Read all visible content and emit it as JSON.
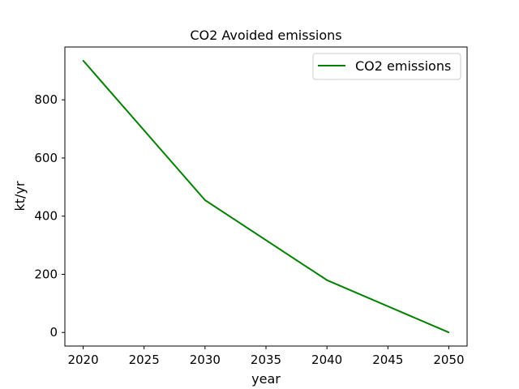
{
  "chart_data": {
    "type": "line",
    "title": "CO2 Avoided emissions",
    "xlabel": "year",
    "ylabel": "kt/yr",
    "x": [
      2020,
      2030,
      2040,
      2050
    ],
    "series": [
      {
        "name": "CO2 emissions",
        "values": [
          935,
          455,
          180,
          0
        ],
        "color": "#008000"
      }
    ],
    "xlim": [
      2018.5,
      2051.5
    ],
    "ylim": [
      -46.75,
      981.75
    ],
    "xticks": [
      2020,
      2025,
      2030,
      2035,
      2040,
      2045,
      2050
    ],
    "yticks": [
      0,
      200,
      400,
      600,
      800
    ],
    "grid": false,
    "legend_position": "upper right"
  }
}
